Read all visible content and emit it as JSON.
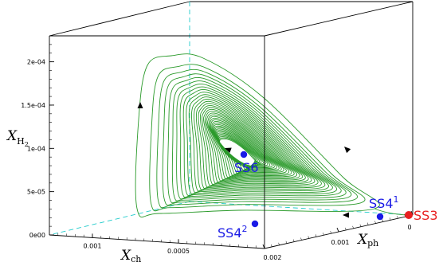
{
  "chart_data": {
    "type": "line",
    "title": "",
    "axes": {
      "z": {
        "label_main": "X",
        "label_sub": "H",
        "label_subsub": "2",
        "ticks": [
          "0e00",
          "5e-05",
          "1e-04",
          "1.5e-04",
          "2e-04"
        ],
        "range": [
          0,
          0.00023
        ]
      },
      "x_ch": {
        "label_main": "X",
        "label_sub": "ch",
        "ticks": [
          "0.001",
          "0.0005"
        ],
        "range": [
          0.00125,
          0
        ]
      },
      "x_ph": {
        "label_main": "X",
        "label_sub": "ph",
        "ticks": [
          "0.002",
          "0.001",
          "0"
        ],
        "range": [
          0.002,
          0
        ]
      }
    },
    "series": [
      {
        "type": "spiral-trajectory",
        "color": "#2a9a2a",
        "description_points": "Spiral approaching limit cycle around SS6",
        "turns": 38,
        "outer_x_ph_range": [
          0.0001,
          0.0019
        ],
        "outer_peak_h2": 0.000205
      }
    ],
    "points": [
      {
        "label": "SS3",
        "color": "#e82020",
        "x_ph": 0.0,
        "x_ch": 0.0,
        "h2": 0.0
      },
      {
        "label": "SS4",
        "sup": "1",
        "color": "#1a1ae6",
        "x_ph": 0.00013,
        "x_ch": 0.0,
        "h2": 4e-06
      },
      {
        "label": "SS4",
        "sup": "2",
        "color": "#1a1ae6",
        "x_ph": 0.00165,
        "x_ch": 0.0,
        "h2": 2.8e-05
      },
      {
        "label": "SS6",
        "color": "#1a1ae6",
        "x_ph": 0.0011,
        "x_ch": 0.0,
        "h2": 0.000108
      }
    ],
    "grid": false,
    "legend": "none"
  }
}
